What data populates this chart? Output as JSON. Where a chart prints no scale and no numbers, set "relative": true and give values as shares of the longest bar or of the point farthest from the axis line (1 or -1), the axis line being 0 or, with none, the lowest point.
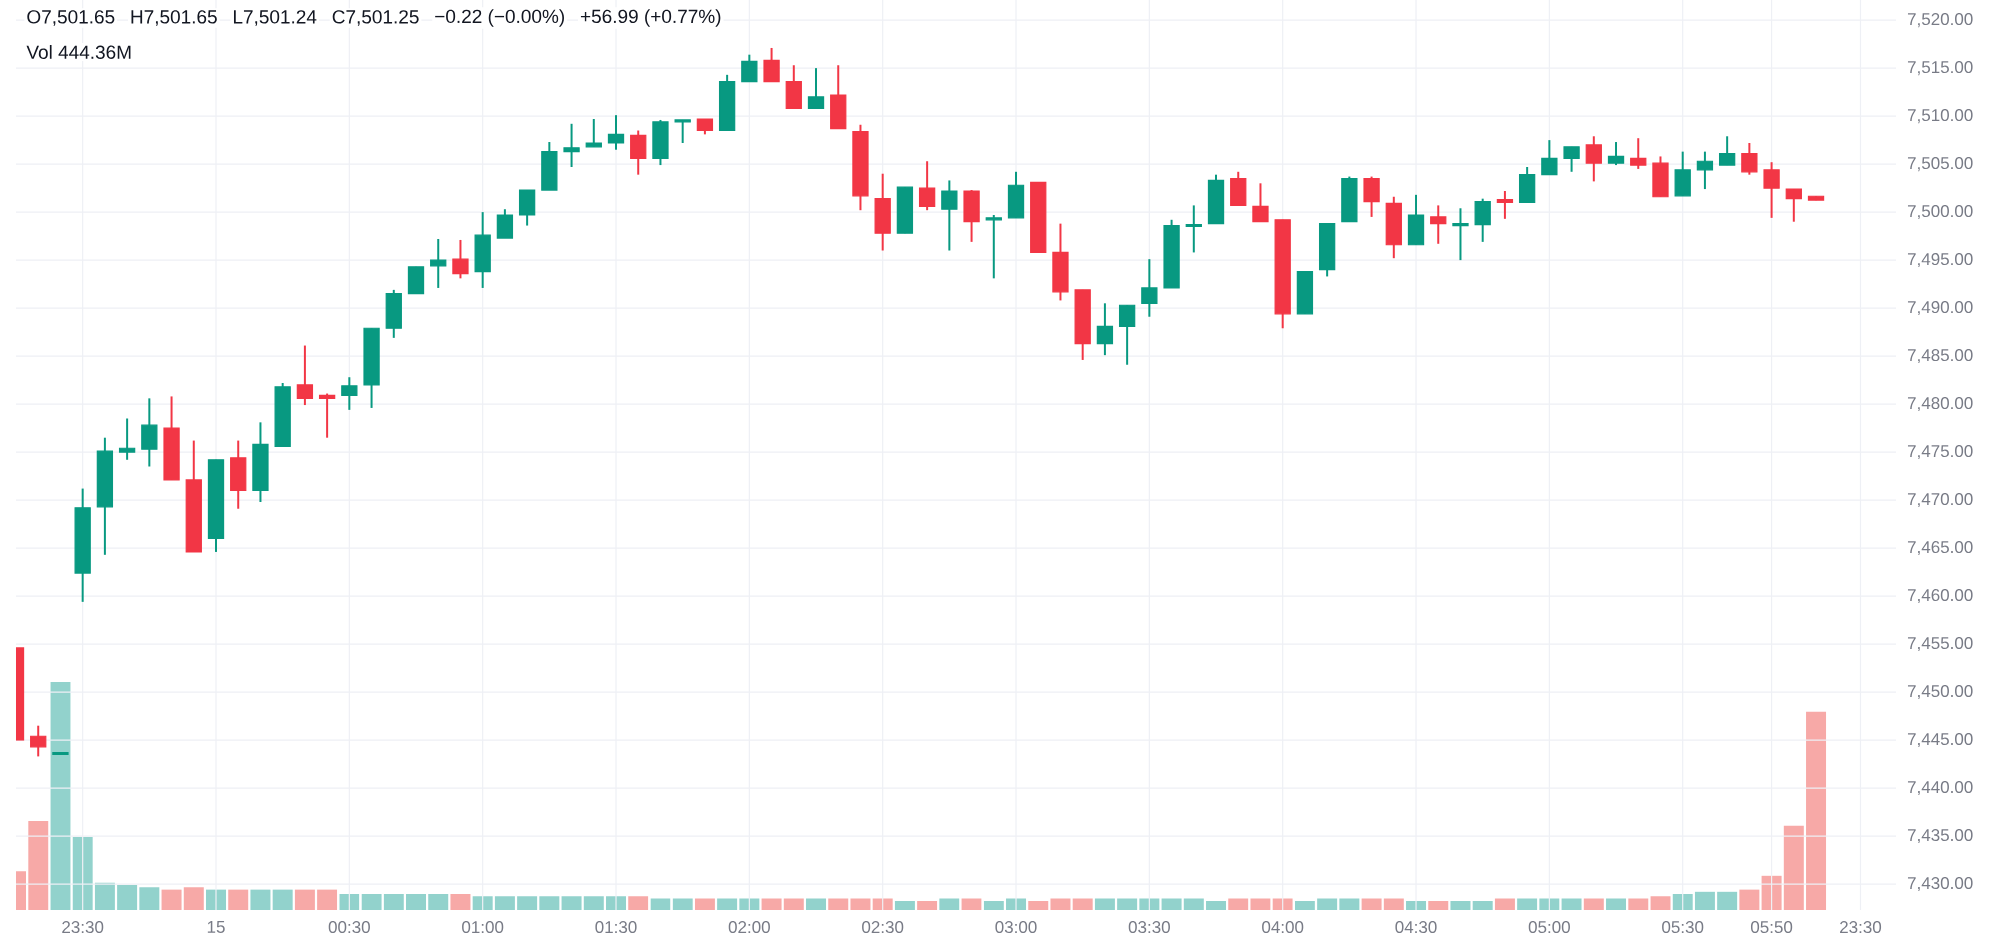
{
  "chart_data": [
    {
      "type": "candlestick",
      "categories": [
        null,
        null,
        null,
        "23:30",
        null,
        null,
        null,
        null,
        null,
        "15",
        null,
        null,
        null,
        null,
        null,
        "00:30",
        null,
        null,
        null,
        null,
        null,
        "01:00",
        null,
        null,
        null,
        null,
        null,
        "01:30",
        null,
        null,
        null,
        null,
        null,
        "02:00",
        null,
        null,
        null,
        null,
        null,
        "02:30",
        null,
        null,
        null,
        null,
        null,
        "03:00",
        null,
        null,
        null,
        null,
        null,
        "03:30",
        null,
        null,
        null,
        null,
        null,
        "04:00",
        null,
        null,
        null,
        null,
        null,
        "04:30",
        null,
        null,
        null,
        null,
        null,
        "05:00",
        null,
        null,
        null,
        null,
        null,
        "05:30",
        null,
        null,
        null,
        "05:50",
        null,
        null,
        null,
        "23:30"
      ],
      "ohlc": [
        [
          7454.6,
          7454.6,
          7445.0,
          7445.0
        ],
        [
          7445.4,
          7446.5,
          7443.3,
          7444.3
        ],
        [
          7443.5,
          7443.7,
          7443.5,
          7443.7
        ],
        [
          7462.4,
          7471.2,
          7459.4,
          7469.2
        ],
        [
          7469.3,
          7476.5,
          7464.3,
          7475.1
        ],
        [
          7475.0,
          7478.5,
          7474.2,
          7475.4
        ],
        [
          7475.3,
          7480.6,
          7473.5,
          7477.8
        ],
        [
          7477.5,
          7480.8,
          7472.1,
          7472.1
        ],
        [
          7472.1,
          7476.2,
          7464.6,
          7464.6
        ],
        [
          7466.0,
          7474.2,
          7464.6,
          7474.2
        ],
        [
          7474.4,
          7476.2,
          7469.1,
          7471.0
        ],
        [
          7471.0,
          7478.1,
          7469.8,
          7475.8
        ],
        [
          7475.6,
          7482.2,
          7475.6,
          7481.8
        ],
        [
          7482.0,
          7486.1,
          7479.9,
          7480.6
        ],
        [
          7480.9,
          7481.1,
          7476.5,
          7480.6
        ],
        [
          7480.9,
          7482.8,
          7479.4,
          7481.9
        ],
        [
          7482.0,
          7487.9,
          7479.6,
          7487.9
        ],
        [
          7487.9,
          7491.9,
          7486.9,
          7491.5
        ],
        [
          7491.5,
          7494.3,
          7491.5,
          7494.3
        ],
        [
          7494.4,
          7497.2,
          7492.1,
          7495.0
        ],
        [
          7495.1,
          7497.1,
          7493.1,
          7493.6
        ],
        [
          7493.8,
          7500.0,
          7492.1,
          7497.6
        ],
        [
          7497.3,
          7500.3,
          7497.3,
          7499.7
        ],
        [
          7499.7,
          7502.3,
          7498.6,
          7502.3
        ],
        [
          7502.3,
          7507.3,
          7502.3,
          7506.3
        ],
        [
          7506.3,
          7509.2,
          7504.7,
          7506.7
        ],
        [
          7506.8,
          7509.7,
          7506.8,
          7507.2
        ],
        [
          7507.2,
          7510.1,
          7506.5,
          7508.1
        ],
        [
          7508.0,
          7508.5,
          7503.9,
          7505.6
        ],
        [
          7505.6,
          7509.6,
          7504.9,
          7509.4
        ],
        [
          7509.4,
          7509.6,
          7507.2,
          7509.6
        ],
        [
          7509.7,
          7509.7,
          7508.1,
          7508.5
        ],
        [
          7508.5,
          7514.3,
          7508.5,
          7513.6
        ],
        [
          7513.6,
          7516.4,
          7513.6,
          7515.7
        ],
        [
          7515.8,
          7517.1,
          7513.6,
          7513.6
        ],
        [
          7513.6,
          7515.3,
          7510.8,
          7510.8
        ],
        [
          7510.8,
          7515.0,
          7510.8,
          7512.0
        ],
        [
          7512.2,
          7515.3,
          7508.7,
          7508.7
        ],
        [
          7508.4,
          7509.1,
          7500.2,
          7501.7
        ],
        [
          7501.4,
          7504.0,
          7496.0,
          7497.8
        ],
        [
          7497.8,
          7502.6,
          7497.8,
          7502.6
        ],
        [
          7502.5,
          7505.3,
          7500.2,
          7500.6
        ],
        [
          7500.3,
          7503.3,
          7496.0,
          7502.2
        ],
        [
          7502.2,
          7502.3,
          7496.9,
          7499.0
        ],
        [
          7499.2,
          7499.7,
          7493.1,
          7499.4
        ],
        [
          7499.4,
          7504.2,
          7499.4,
          7502.8
        ],
        [
          7503.1,
          7503.1,
          7495.8,
          7495.8
        ],
        [
          7495.8,
          7498.8,
          7490.8,
          7491.7
        ],
        [
          7491.9,
          7491.9,
          7484.6,
          7486.3
        ],
        [
          7486.3,
          7490.5,
          7485.1,
          7488.1
        ],
        [
          7488.1,
          7490.3,
          7484.1,
          7490.3
        ],
        [
          7490.5,
          7495.1,
          7489.1,
          7492.1
        ],
        [
          7492.1,
          7499.2,
          7492.1,
          7498.6
        ],
        [
          7498.5,
          7500.7,
          7495.8,
          7498.7
        ],
        [
          7498.8,
          7503.9,
          7498.8,
          7503.3
        ],
        [
          7503.5,
          7504.2,
          7500.7,
          7500.7
        ],
        [
          7500.6,
          7503.0,
          7499.0,
          7499.0
        ],
        [
          7499.2,
          7499.2,
          7487.9,
          7489.4
        ],
        [
          7489.4,
          7493.8,
          7489.4,
          7493.8
        ],
        [
          7494.0,
          7498.8,
          7493.3,
          7498.8
        ],
        [
          7499.0,
          7503.7,
          7499.0,
          7503.5
        ],
        [
          7503.5,
          7503.7,
          7499.5,
          7501.1
        ],
        [
          7500.9,
          7501.6,
          7495.2,
          7496.6
        ],
        [
          7496.6,
          7501.8,
          7496.6,
          7499.7
        ],
        [
          7499.5,
          7500.7,
          7496.7,
          7498.8
        ],
        [
          7498.6,
          7500.4,
          7495.0,
          7498.8
        ],
        [
          7498.7,
          7501.4,
          7496.9,
          7501.1
        ],
        [
          7501.3,
          7502.2,
          7499.3,
          7501.0
        ],
        [
          7501.0,
          7504.7,
          7501.0,
          7503.9
        ],
        [
          7503.9,
          7507.5,
          7503.9,
          7505.6
        ],
        [
          7505.6,
          7506.8,
          7504.2,
          7506.8
        ],
        [
          7507.0,
          7507.9,
          7503.2,
          7505.1
        ],
        [
          7505.1,
          7507.3,
          7504.9,
          7505.8
        ],
        [
          7505.6,
          7507.7,
          7504.5,
          7504.9
        ],
        [
          7505.1,
          7505.8,
          7501.6,
          7501.6
        ],
        [
          7501.7,
          7506.3,
          7501.7,
          7504.4
        ],
        [
          7504.4,
          7506.3,
          7502.4,
          7505.3
        ],
        [
          7504.9,
          7507.9,
          7504.9,
          7506.1
        ],
        [
          7506.1,
          7507.2,
          7503.9,
          7504.2
        ],
        [
          7504.4,
          7505.2,
          7499.4,
          7502.5
        ],
        [
          7502.4,
          7502.4,
          7499.0,
          7501.4
        ],
        [
          7501.65,
          7501.65,
          7501.24,
          7501.25
        ],
        null,
        null
      ],
      "colors": [
        "#f23645",
        "#f23645",
        "#089981",
        "#089981",
        "#089981",
        "#089981",
        "#089981",
        "#f23645",
        "#f23645",
        "#089981",
        "#f23645",
        "#089981",
        "#089981",
        "#f23645",
        "#f23645",
        "#089981",
        "#089981",
        "#089981",
        "#089981",
        "#089981",
        "#f23645",
        "#089981",
        "#089981",
        "#089981",
        "#089981",
        "#089981",
        "#089981",
        "#089981",
        "#f23645",
        "#089981",
        "#089981",
        "#f23645",
        "#089981",
        "#089981",
        "#f23645",
        "#f23645",
        "#089981",
        "#f23645",
        "#f23645",
        "#f23645",
        "#089981",
        "#f23645",
        "#089981",
        "#f23645",
        "#089981",
        "#089981",
        "#f23645",
        "#f23645",
        "#f23645",
        "#089981",
        "#089981",
        "#089981",
        "#089981",
        "#089981",
        "#089981",
        "#f23645",
        "#f23645",
        "#f23645",
        "#089981",
        "#089981",
        "#089981",
        "#f23645",
        "#f23645",
        "#089981",
        "#f23645",
        "#089981",
        "#089981",
        "#f23645",
        "#089981",
        "#089981",
        "#089981",
        "#f23645",
        "#089981",
        "#f23645",
        "#f23645",
        "#089981",
        "#089981",
        "#089981",
        "#f23645",
        "#f23645",
        "#f23645",
        "#f23645",
        null,
        null
      ],
      "ylim": [
        7427.3,
        7522.1
      ],
      "yticks": [
        {
          "value": 7430,
          "label": "7,430.00"
        },
        {
          "value": 7435,
          "label": "7,435.00"
        },
        {
          "value": 7440,
          "label": "7,440.00"
        },
        {
          "value": 7445,
          "label": "7,445.00"
        },
        {
          "value": 7450,
          "label": "7,450.00"
        },
        {
          "value": 7455,
          "label": "7,455.00"
        },
        {
          "value": 7460,
          "label": "7,460.00"
        },
        {
          "value": 7465,
          "label": "7,465.00"
        },
        {
          "value": 7470,
          "label": "7,470.00"
        },
        {
          "value": 7475,
          "label": "7,475.00"
        },
        {
          "value": 7480,
          "label": "7,480.00"
        },
        {
          "value": 7485,
          "label": "7,485.00"
        },
        {
          "value": 7490,
          "label": "7,490.00"
        },
        {
          "value": 7495,
          "label": "7,495.00"
        },
        {
          "value": 7500,
          "label": "7,500.00"
        },
        {
          "value": 7505,
          "label": "7,505.00"
        },
        {
          "value": 7510,
          "label": "7,510.00"
        },
        {
          "value": 7515,
          "label": "7,515.00"
        },
        {
          "value": 7520,
          "label": "7,520.00"
        }
      ],
      "grid": true,
      "annotations": [
        "O7,501.65",
        "H7,501.65",
        "L7,501.24",
        "C7,501.25",
        "−0.22 (−0.00%)",
        "+56.99 (+0.77%)"
      ]
    },
    {
      "type": "bar",
      "relative": true,
      "categories": [
        null,
        null,
        null,
        null,
        null,
        null,
        null,
        null,
        null,
        null,
        null,
        null,
        null,
        null,
        null,
        null,
        null,
        null,
        null,
        null,
        null,
        null,
        null,
        null,
        null,
        null,
        null,
        null,
        null,
        null,
        null,
        null,
        null,
        null,
        null,
        null,
        null,
        null,
        null,
        null,
        null,
        null,
        null,
        null,
        null,
        null,
        null,
        null,
        null,
        null,
        null,
        null,
        null,
        null,
        null,
        null,
        null,
        null,
        null,
        null,
        null,
        null,
        null,
        null,
        null,
        null,
        null,
        null,
        null,
        null,
        null,
        null,
        null,
        null,
        null,
        null,
        null,
        null,
        null,
        null,
        null,
        null
      ],
      "values": [
        0.17,
        0.39,
        1,
        0.32,
        0.12,
        0.11,
        0.1,
        0.09,
        0.1,
        0.09,
        0.09,
        0.09,
        0.09,
        0.09,
        0.09,
        0.07,
        0.07,
        0.07,
        0.07,
        0.07,
        0.07,
        0.06,
        0.06,
        0.06,
        0.06,
        0.06,
        0.06,
        0.06,
        0.06,
        0.05,
        0.05,
        0.05,
        0.05,
        0.05,
        0.05,
        0.05,
        0.05,
        0.05,
        0.05,
        0.05,
        0.04,
        0.04,
        0.05,
        0.05,
        0.04,
        0.05,
        0.04,
        0.05,
        0.05,
        0.05,
        0.05,
        0.05,
        0.05,
        0.05,
        0.04,
        0.05,
        0.05,
        0.05,
        0.04,
        0.05,
        0.05,
        0.05,
        0.05,
        0.04,
        0.04,
        0.04,
        0.04,
        0.05,
        0.05,
        0.05,
        0.05,
        0.05,
        0.05,
        0.05,
        0.06,
        0.07,
        0.08,
        0.08,
        0.09,
        0.15,
        0.37,
        0.87
      ],
      "colors": [
        "#f7a9a7",
        "#f7a9a7",
        "#92d2cc",
        "#92d2cc",
        "#92d2cc",
        "#92d2cc",
        "#92d2cc",
        "#f7a9a7",
        "#f7a9a7",
        "#92d2cc",
        "#f7a9a7",
        "#92d2cc",
        "#92d2cc",
        "#f7a9a7",
        "#f7a9a7",
        "#92d2cc",
        "#92d2cc",
        "#92d2cc",
        "#92d2cc",
        "#92d2cc",
        "#f7a9a7",
        "#92d2cc",
        "#92d2cc",
        "#92d2cc",
        "#92d2cc",
        "#92d2cc",
        "#92d2cc",
        "#92d2cc",
        "#f7a9a7",
        "#92d2cc",
        "#92d2cc",
        "#f7a9a7",
        "#92d2cc",
        "#92d2cc",
        "#f7a9a7",
        "#f7a9a7",
        "#92d2cc",
        "#f7a9a7",
        "#f7a9a7",
        "#f7a9a7",
        "#92d2cc",
        "#f7a9a7",
        "#92d2cc",
        "#f7a9a7",
        "#92d2cc",
        "#92d2cc",
        "#f7a9a7",
        "#f7a9a7",
        "#f7a9a7",
        "#92d2cc",
        "#92d2cc",
        "#92d2cc",
        "#92d2cc",
        "#92d2cc",
        "#92d2cc",
        "#f7a9a7",
        "#f7a9a7",
        "#f7a9a7",
        "#92d2cc",
        "#92d2cc",
        "#92d2cc",
        "#f7a9a7",
        "#f7a9a7",
        "#92d2cc",
        "#f7a9a7",
        "#92d2cc",
        "#92d2cc",
        "#f7a9a7",
        "#92d2cc",
        "#92d2cc",
        "#92d2cc",
        "#f7a9a7",
        "#92d2cc",
        "#f7a9a7",
        "#f7a9a7",
        "#92d2cc",
        "#92d2cc",
        "#92d2cc",
        "#f7a9a7",
        "#f7a9a7",
        "#f7a9a7",
        "#f7a9a7"
      ],
      "annotations": [
        "Vol 444.36M"
      ]
    }
  ]
}
